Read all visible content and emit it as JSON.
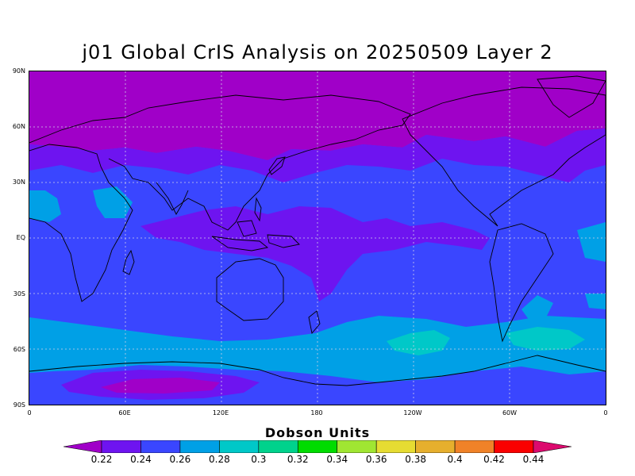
{
  "title": "j01 Global CrIS Analysis on 20250509 Layer 2",
  "lat_ticks": [
    "90N",
    "60N",
    "30N",
    "EQ",
    "30S",
    "60S",
    "90S"
  ],
  "lon_ticks": [
    "0",
    "60E",
    "120E",
    "180",
    "120W",
    "60W",
    "0"
  ],
  "colorbar": {
    "title": "Dobson Units",
    "labels": [
      "0.22",
      "0.24",
      "0.26",
      "0.28",
      "0.3",
      "0.32",
      "0.34",
      "0.36",
      "0.38",
      "0.4",
      "0.42",
      "0.44"
    ],
    "colors": [
      "#a000c8",
      "#6e14f0",
      "#3a46ff",
      "#00a0e6",
      "#00c8c8",
      "#00d28c",
      "#00dc00",
      "#a0e632",
      "#e6dc32",
      "#e6af2d",
      "#f08228",
      "#fa0000",
      "#dc0a6e"
    ]
  },
  "map": {
    "band_colors": {
      "low": "#a000c8",
      "low_mid": "#6e14f0",
      "mid": "#3a46ff",
      "high": "#00a0e6",
      "peak": "#00c8c8"
    }
  }
}
